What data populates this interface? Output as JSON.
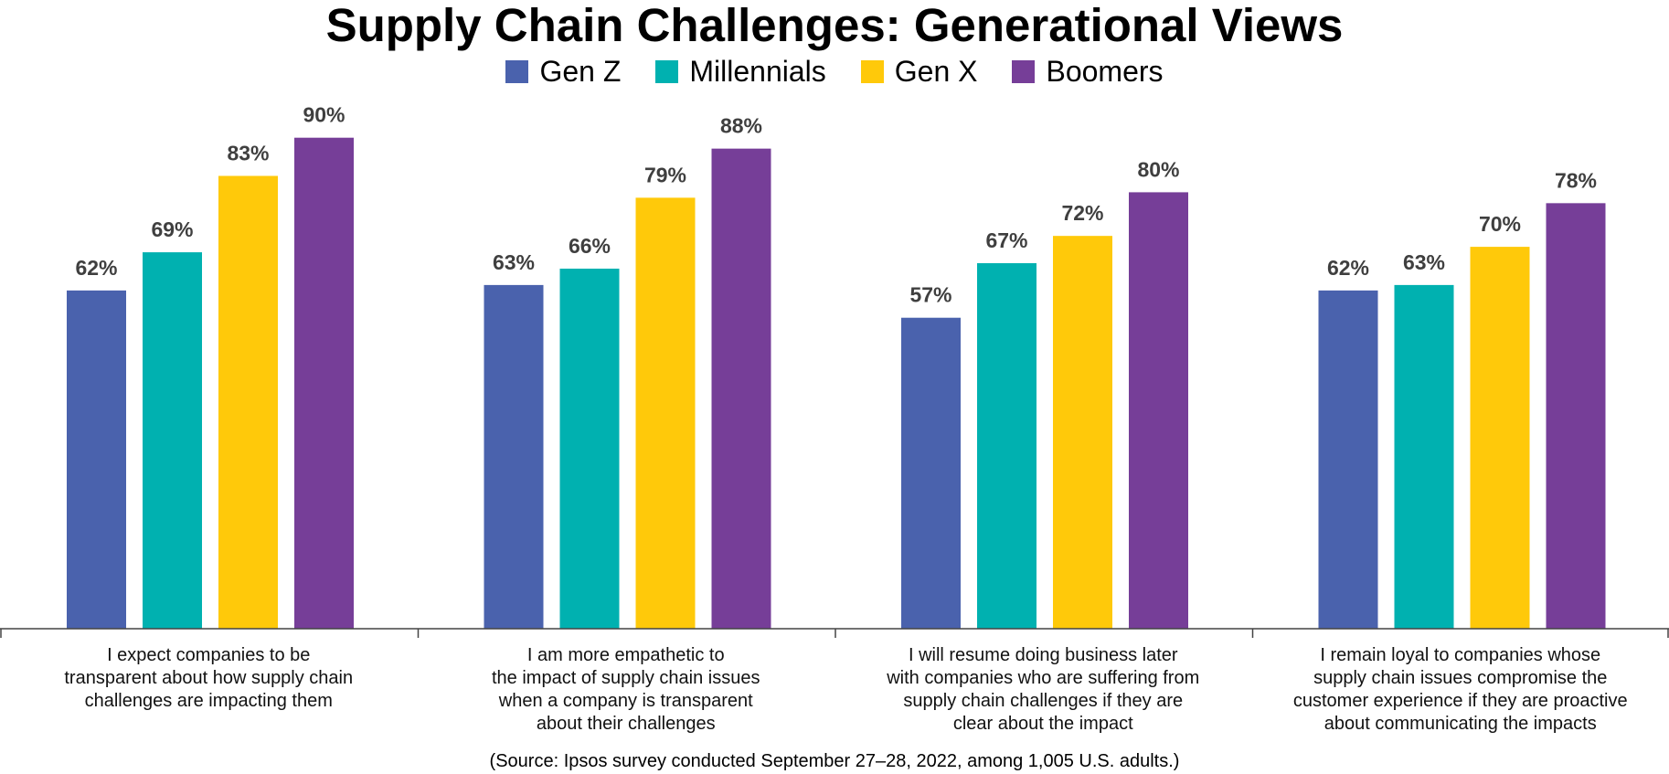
{
  "chart_data": {
    "type": "bar",
    "title": "Supply Chain Challenges: Generational Views",
    "categories": [
      [
        "I expect companies to be",
        "transparent about how supply chain",
        "challenges are impacting them"
      ],
      [
        "I am more empathetic to",
        "the impact of supply chain issues",
        "when a company is transparent",
        "about their challenges"
      ],
      [
        "I will resume doing business later",
        "with companies who are suffering from",
        "supply chain challenges if they are",
        "clear about the impact"
      ],
      [
        "I remain loyal to companies whose",
        "supply chain issues compromise the",
        "customer experience if they are proactive",
        "about communicating the impacts"
      ]
    ],
    "series": [
      {
        "name": "Gen Z",
        "color": "#4a62ad",
        "values": [
          62,
          63,
          57,
          62
        ]
      },
      {
        "name": "Millennials",
        "color": "#00b1b0",
        "values": [
          69,
          66,
          67,
          63
        ]
      },
      {
        "name": "Gen X",
        "color": "#ffc90a",
        "values": [
          83,
          79,
          72,
          70
        ]
      },
      {
        "name": "Boomers",
        "color": "#763e98",
        "values": [
          90,
          88,
          80,
          78
        ]
      }
    ],
    "value_suffix": "%",
    "ylim": [
      0,
      100
    ],
    "xlabel": "",
    "ylabel": "",
    "grid": false,
    "legend_position": "top-center",
    "source": "(Source: Ipsos survey conducted September 27–28, 2022, among 1,005 U.S. adults.)"
  }
}
